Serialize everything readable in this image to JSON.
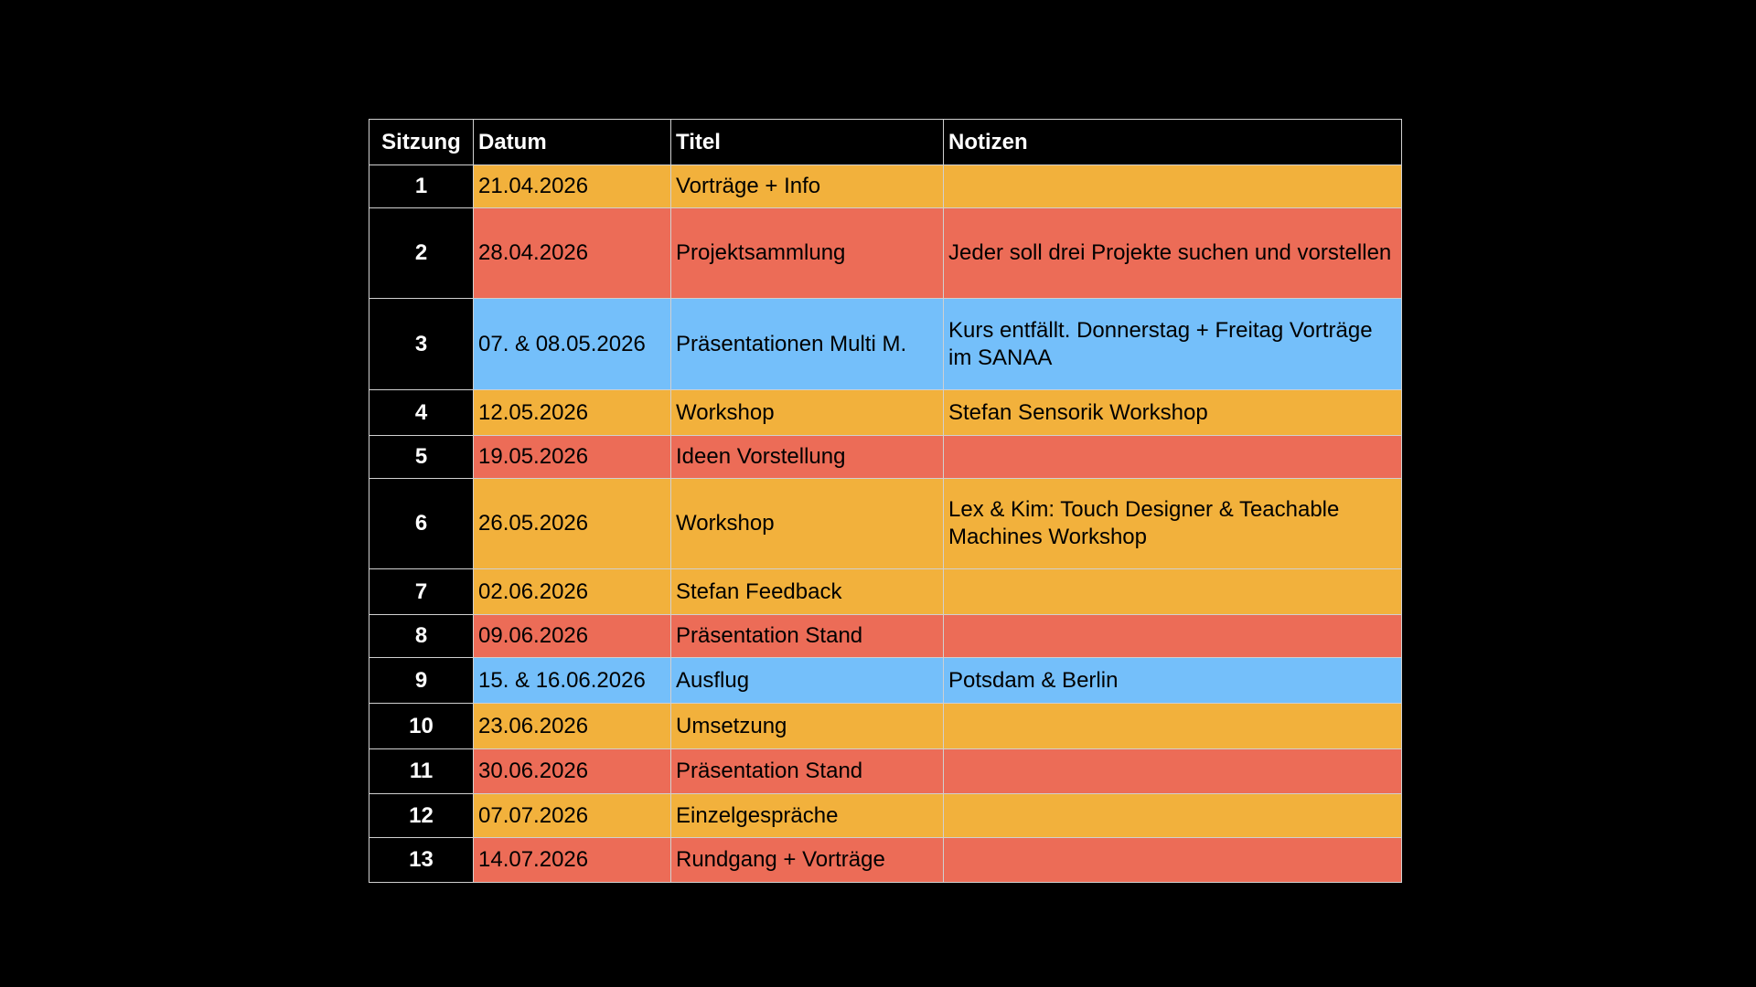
{
  "table": {
    "header": [
      "Sitzung",
      "Datum",
      "Titel",
      "Notizen"
    ],
    "rows": [
      {
        "sitzung": "1",
        "datum": "21.04.2026",
        "titel": "Vorträge + Info",
        "color": "#f2b13c"
      },
      {
        "sitzung": "2",
        "datum": "28.04.2026",
        "titel": "Projektsammlung",
        "notizen": "Jeder soll drei Projekte suchen und vorstellen",
        "color": "#ec6c57"
      },
      {
        "sitzung": "3",
        "datum": "07. & 08.05.2026",
        "titel": "Präsentationen Multi M.",
        "notizen": "Kurs entfällt. Donnerstag + Freitag Vorträge im SANAA",
        "color": "#74bffa"
      },
      {
        "sitzung": "4",
        "datum": "12.05.2026",
        "titel": "Workshop",
        "notizen": "Stefan Sensorik Workshop",
        "color": "#f2b13c"
      },
      {
        "sitzung": "5",
        "datum": "19.05.2026",
        "titel": "Ideen Vorstellung",
        "color": "#ec6c57"
      },
      {
        "sitzung": "6",
        "datum": "26.05.2026",
        "titel": "Workshop",
        "notizen": "Lex & Kim: Touch Designer & Teachable Machines Workshop",
        "color": "#f2b13c"
      },
      {
        "sitzung": "7",
        "datum": "02.06.2026",
        "titel": "Stefan Feedback",
        "color": "#f2b13c"
      },
      {
        "sitzung": "8",
        "datum": "09.06.2026",
        "titel": "Präsentation Stand",
        "color": "#ec6c57"
      },
      {
        "sitzung": "9",
        "datum": "15. & 16.06.2026",
        "titel": "Ausflug",
        "notizen": "Potsdam & Berlin",
        "color": "#74bffa"
      },
      {
        "sitzung": "10",
        "datum": "23.06.2026",
        "titel": "Umsetzung",
        "color": "#f2b13c"
      },
      {
        "sitzung": "11",
        "datum": "30.06.2026",
        "titel": "Präsentation Stand",
        "color": "#ec6c57"
      },
      {
        "sitzung": "12",
        "datum": "07.07.2026",
        "titel": "Einzelgespräche",
        "color": "#f2b13c"
      },
      {
        "sitzung": "13",
        "datum": "14.07.2026",
        "titel": "Rundgang + Vorträge",
        "color": "#ec6c57"
      }
    ]
  }
}
